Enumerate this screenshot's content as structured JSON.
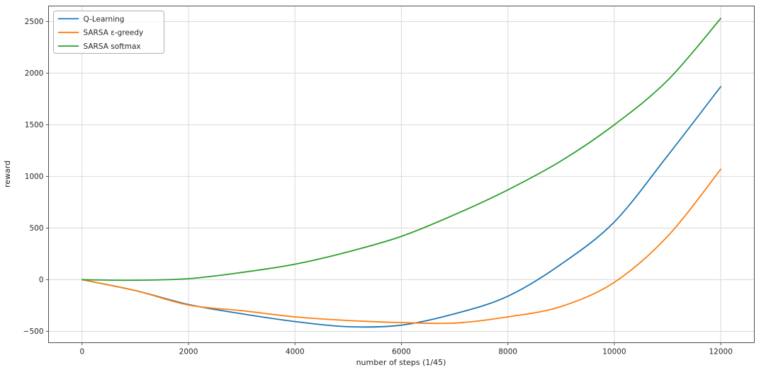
{
  "figure": {
    "background": "#ffffff"
  },
  "chart_data": {
    "type": "line",
    "title": "",
    "xlabel": "number of steps (1/45)",
    "ylabel": "reward",
    "x": [
      0,
      1000,
      2000,
      3000,
      4000,
      5000,
      6000,
      7000,
      8000,
      9000,
      10000,
      11000,
      12000
    ],
    "series": [
      {
        "name": "Q-Learning",
        "color": "#1f77b4",
        "values": [
          0,
          -105,
          -240,
          -330,
          -405,
          -455,
          -440,
          -330,
          -160,
          150,
          560,
          1200,
          1870
        ]
      },
      {
        "name": "SARSA ε-greedy",
        "color": "#ff7f0e",
        "values": [
          0,
          -105,
          -245,
          -300,
          -360,
          -395,
          -415,
          -420,
          -360,
          -260,
          -25,
          420,
          1070
        ]
      },
      {
        "name": "SARSA softmax",
        "color": "#2ca02c",
        "values": [
          0,
          -5,
          10,
          70,
          150,
          270,
          420,
          630,
          870,
          1150,
          1500,
          1930,
          2530
        ]
      }
    ],
    "xticks": {
      "values": [
        0,
        2000,
        4000,
        6000,
        8000,
        10000,
        12000
      ],
      "labels": [
        "0",
        "2000",
        "4000",
        "6000",
        "8000",
        "10000",
        "12000"
      ]
    },
    "yticks": {
      "values": [
        -500,
        0,
        500,
        1000,
        1500,
        2000,
        2500
      ],
      "labels": [
        "−500",
        "0",
        "500",
        "1000",
        "1500",
        "2000",
        "2500"
      ]
    },
    "xlim": [
      -630,
      12630
    ],
    "ylim": [
      -610,
      2650
    ],
    "grid": true,
    "legend": {
      "position": "upper left",
      "entries": [
        "Q-Learning",
        "SARSA ε-greedy",
        "SARSA softmax"
      ]
    },
    "colors": {
      "grid": "#d9d9d9",
      "spine": "#4d4d4d",
      "tick_text": "#262626"
    }
  }
}
